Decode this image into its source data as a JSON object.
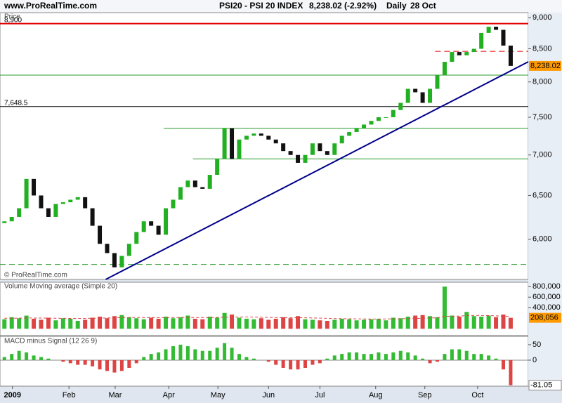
{
  "header": {
    "site": "www.ProRealTime.com",
    "instrument": "PSI20 - PSI 20 INDEX",
    "quote": "8,238.02 (-2.92%)",
    "period": "Daily",
    "date": "28 Oct"
  },
  "chart_data": [
    {
      "type": "candlestick",
      "title": "Price",
      "watermark": "© ProRealTime.com",
      "log_scale": true,
      "ylim": [
        5575,
        9081
      ],
      "xlim": [
        -0.6,
        71.4
      ],
      "yticks": [
        {
          "value": 6000,
          "label": "6,000"
        },
        {
          "value": 6500,
          "label": "6,500"
        },
        {
          "value": 7000,
          "label": "7,000"
        },
        {
          "value": 7500,
          "label": "7,500"
        },
        {
          "value": 8000,
          "label": "8,000"
        },
        {
          "value": 8500,
          "label": "8,500"
        },
        {
          "value": 9000,
          "label": "9,000"
        }
      ],
      "xticks": [
        {
          "value": 1.1,
          "label": "2009"
        },
        {
          "value": 8.8,
          "label": "Feb"
        },
        {
          "value": 15.1,
          "label": "Mar"
        },
        {
          "value": 22.4,
          "label": "Apr"
        },
        {
          "value": 29.1,
          "label": "May"
        },
        {
          "value": 36,
          "label": "Jun"
        },
        {
          "value": 43,
          "label": "Jul"
        },
        {
          "value": 50.6,
          "label": "Aug"
        },
        {
          "value": 57.3,
          "label": "Sep"
        },
        {
          "value": 64.5,
          "label": "Oct"
        }
      ],
      "up_color": "#22b022",
      "down_color": "#111111",
      "open": [
        6180,
        6200,
        6250,
        6350,
        6700,
        6500,
        6350,
        6250,
        6400,
        6420,
        6450,
        6480,
        6350,
        6150,
        5950,
        5850,
        5700,
        5820,
        5950,
        6080,
        6200,
        6150,
        6050,
        6350,
        6450,
        6600,
        6680,
        6600,
        6580,
        6750,
        6950,
        7350,
        6950,
        7200,
        7250,
        7280,
        7250,
        7200,
        7150,
        7050,
        7000,
        6900,
        7000,
        7150,
        7050,
        7000,
        7150,
        7250,
        7300,
        7350,
        7400,
        7450,
        7500,
        7500,
        7600,
        7700,
        7900,
        7850,
        7700,
        7900,
        8100,
        8300,
        8450,
        8400,
        8450,
        8500,
        8750,
        8850,
        8800,
        8550
      ],
      "close": [
        6200,
        6250,
        6350,
        6700,
        6500,
        6350,
        6250,
        6400,
        6420,
        6450,
        6480,
        6350,
        6150,
        5950,
        5850,
        5700,
        5820,
        5950,
        6080,
        6200,
        6150,
        6050,
        6350,
        6450,
        6600,
        6680,
        6600,
        6580,
        6750,
        6950,
        7350,
        6950,
        7200,
        7250,
        7280,
        7250,
        7200,
        7150,
        7050,
        7000,
        6900,
        7000,
        7150,
        7050,
        7000,
        7150,
        7250,
        7300,
        7350,
        7400,
        7450,
        7500,
        7500,
        7600,
        7700,
        7900,
        7850,
        7700,
        7900,
        8100,
        8300,
        8450,
        8400,
        8450,
        8500,
        8750,
        8850,
        8800,
        8550,
        8238.02
      ],
      "last_label": "8,238.02",
      "last_color": "#ff9900",
      "levels": [
        {
          "value": 8900,
          "label": "8,900",
          "color": "#e00000",
          "dash": false,
          "from": -0.6
        },
        {
          "value": 8460,
          "color": "#e00000",
          "dash": true,
          "from": 58.7
        },
        {
          "value": 8100,
          "color": "#2a9a2a",
          "dash": false,
          "from": -0.6
        },
        {
          "value": 7648.5,
          "label": "7,648.5",
          "color": "#000000",
          "dash": false,
          "from": -0.6
        },
        {
          "value": 7350,
          "color": "#2a9a2a",
          "dash": false,
          "from": 21.7
        },
        {
          "value": 6950,
          "color": "#2a9a2a",
          "dash": false,
          "from": 25.7
        },
        {
          "value": 5730,
          "color": "#2a9a2a",
          "dash": true,
          "from": -0.6
        }
      ],
      "trendline": {
        "x": [
          13.8,
          71.4
        ],
        "values": [
          5575,
          8300
        ],
        "color": "#00008b"
      }
    },
    {
      "type": "bar",
      "title": "Volume Moving average (Simple 20)",
      "ylim": [
        -130000,
        870000
      ],
      "yticks": [
        {
          "value": 400000,
          "label": "400,000"
        },
        {
          "value": 600000,
          "label": "600,000"
        },
        {
          "value": 800000,
          "label": "800,000"
        }
      ],
      "values": [
        180000,
        220000,
        200000,
        250000,
        190000,
        170000,
        210000,
        160000,
        200000,
        190000,
        150000,
        170000,
        210000,
        230000,
        200000,
        240000,
        260000,
        220000,
        200000,
        180000,
        210000,
        190000,
        230000,
        200000,
        220000,
        250000,
        190000,
        180000,
        230000,
        210000,
        300000,
        270000,
        210000,
        190000,
        180000,
        200000,
        170000,
        190000,
        220000,
        200000,
        240000,
        180000,
        170000,
        160000,
        150000,
        170000,
        190000,
        180000,
        160000,
        170000,
        180000,
        190000,
        160000,
        210000,
        200000,
        230000,
        250000,
        260000,
        240000,
        220000,
        800000,
        250000,
        230000,
        320000,
        240000,
        230000,
        250000,
        220000,
        270000,
        208056
      ],
      "moving_average": [
        200000,
        200000,
        202000,
        205000,
        204000,
        203000,
        202000,
        200000,
        198000,
        197000,
        196000,
        197000,
        199000,
        202000,
        205000,
        208000,
        212000,
        214000,
        215000,
        214000,
        213000,
        212000,
        212000,
        213000,
        214000,
        215000,
        214000,
        213000,
        214000,
        215000,
        220000,
        223000,
        224000,
        223000,
        221000,
        219000,
        216000,
        213000,
        212000,
        211000,
        210000,
        208000,
        205000,
        202000,
        198000,
        195000,
        192000,
        190000,
        188000,
        186000,
        185000,
        185000,
        186000,
        188000,
        190000,
        193000,
        196000,
        200000,
        205000,
        208000,
        235000,
        238000,
        240000,
        250000,
        252000,
        253000,
        250000,
        245000,
        240000,
        232000
      ],
      "up_color": "#33bb33",
      "down_color": "#dd4444",
      "ma_color": "#dd4444",
      "last_label": "208,056",
      "last_color": "#ff9900"
    },
    {
      "type": "histogram",
      "title": "MACD minus Signal (12 26 9)",
      "ylim": [
        -84,
        77
      ],
      "yticks": [
        0,
        50
      ],
      "values": [
        10,
        20,
        30,
        25,
        15,
        10,
        5,
        0,
        -5,
        -10,
        -15,
        -15,
        -20,
        -30,
        -35,
        -40,
        -35,
        -25,
        -10,
        10,
        20,
        25,
        35,
        45,
        50,
        45,
        35,
        30,
        30,
        40,
        55,
        40,
        20,
        10,
        5,
        0,
        -5,
        -15,
        -25,
        -30,
        -30,
        -25,
        -15,
        -10,
        5,
        15,
        20,
        25,
        25,
        20,
        20,
        25,
        20,
        25,
        30,
        25,
        15,
        5,
        -10,
        -5,
        20,
        35,
        35,
        30,
        20,
        20,
        15,
        5,
        -30,
        -81.05
      ],
      "up_color": "#33bb33",
      "down_color": "#dd4444"
    }
  ]
}
